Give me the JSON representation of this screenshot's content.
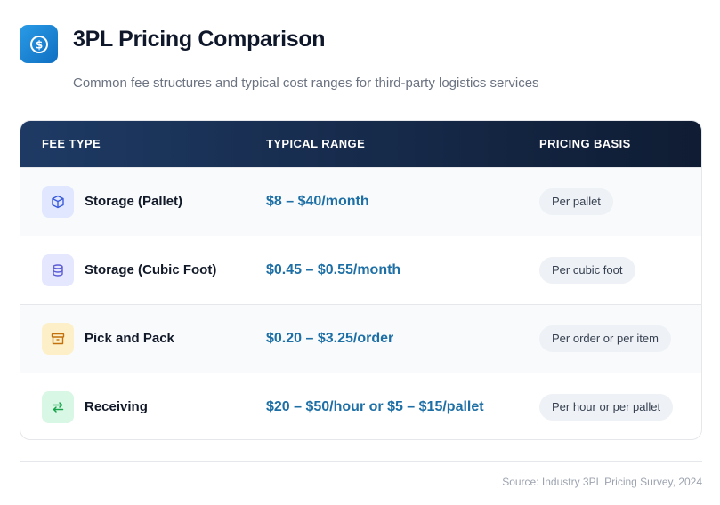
{
  "header": {
    "title": "3PL Pricing Comparison",
    "subtitle": "Common fee structures and typical cost ranges for third-party logistics services",
    "icon": "dollar-circle-icon"
  },
  "table": {
    "columns": [
      "FEE TYPE",
      "TYPICAL RANGE",
      "PRICING BASIS"
    ],
    "rows": [
      {
        "fee_type": "Storage (Pallet)",
        "range": "$8 – $40/month",
        "basis": "Per pallet",
        "icon": "box-icon",
        "icon_bg": "#e0e7ff",
        "icon_color": "#3b5bdb"
      },
      {
        "fee_type": "Storage (Cubic Foot)",
        "range": "$0.45 – $0.55/month",
        "basis": "Per cubic foot",
        "icon": "database-icon",
        "icon_bg": "#e5e7ff",
        "icon_color": "#5b5bd6"
      },
      {
        "fee_type": "Pick and Pack",
        "range": "$0.20 – $3.25/order",
        "basis": "Per order or per item",
        "icon": "archive-icon",
        "icon_bg": "#fdf0c9",
        "icon_color": "#c2710c"
      },
      {
        "fee_type": "Receiving",
        "range": "$20 – $50/hour or $5 – $15/pallet",
        "basis": "Per hour or per pallet",
        "icon": "arrows-exchange-icon",
        "icon_bg": "#d9f7e5",
        "icon_color": "#16a34a"
      }
    ]
  },
  "footer": {
    "source": "Source: Industry 3PL Pricing Survey, 2024"
  },
  "colors": {
    "accent": "#1d6fa5",
    "header_bg": "#1e3a64"
  }
}
